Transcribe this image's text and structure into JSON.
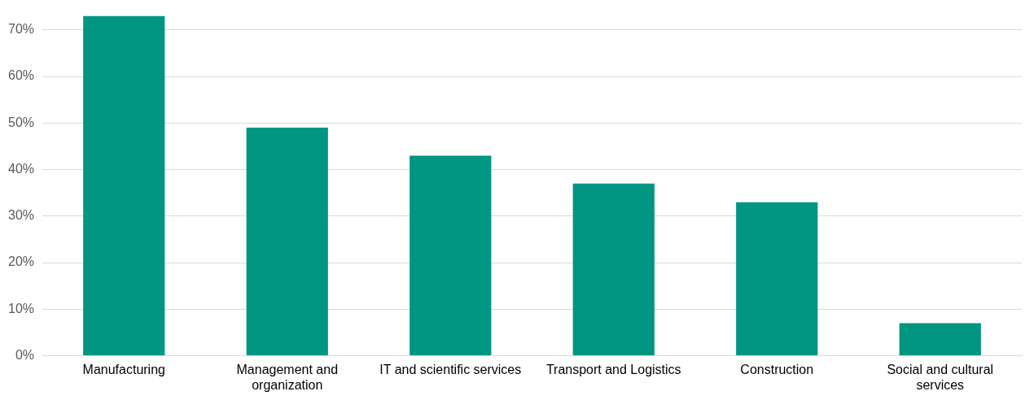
{
  "chart_data": {
    "type": "bar",
    "categories": [
      "Manufacturing",
      "Management and organization",
      "IT and scientific services",
      "Transport and Logistics",
      "Construction",
      "Social and cultural services"
    ],
    "values": [
      73,
      49,
      43,
      37,
      33,
      7
    ],
    "color": "#009682",
    "ylim": [
      0,
      73
    ],
    "yticks": [
      {
        "value": 0,
        "label": "0%"
      },
      {
        "value": 10,
        "label": "10%"
      },
      {
        "value": 20,
        "label": "20%"
      },
      {
        "value": 30,
        "label": "30%"
      },
      {
        "value": 40,
        "label": "40%"
      },
      {
        "value": 50,
        "label": "50%"
      },
      {
        "value": 60,
        "label": "60%"
      },
      {
        "value": 70,
        "label": "70%"
      }
    ],
    "grid": "y",
    "legend": false
  }
}
